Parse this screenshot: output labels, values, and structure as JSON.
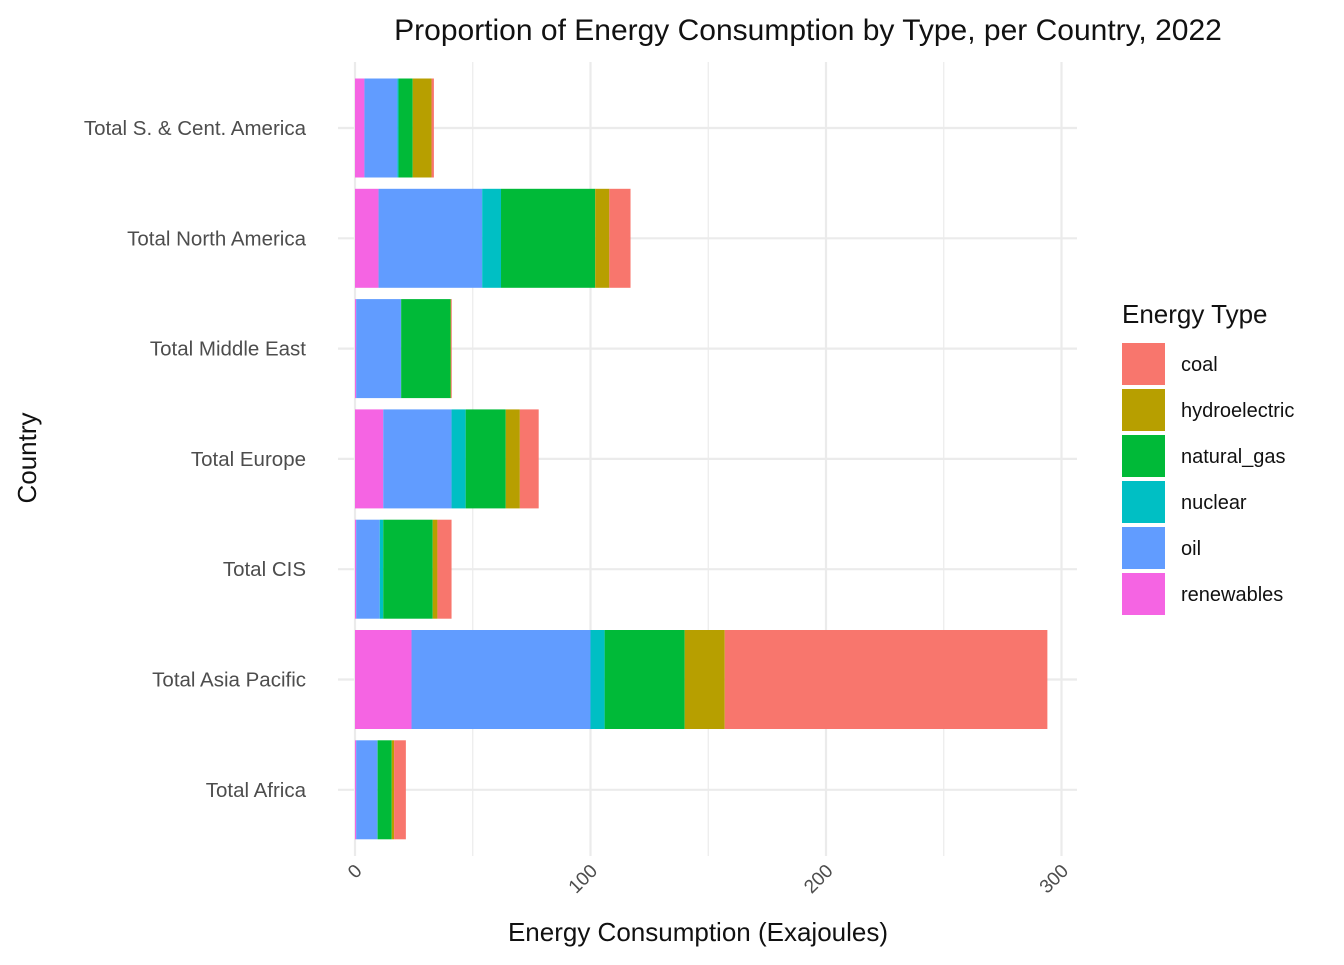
{
  "chart_data": {
    "type": "bar",
    "orientation": "horizontal",
    "stacked": true,
    "title": "Proportion of Energy Consumption by Type, per Country, 2022",
    "xlabel": "Energy Consumption (Exajoules)",
    "ylabel": "Country",
    "xlim": [
      0,
      300
    ],
    "x_ticks": [
      0,
      100,
      200,
      300
    ],
    "grid": true,
    "legend": {
      "title": "Energy Type",
      "position": "right"
    },
    "categories": [
      "Total S. & Cent. America",
      "Total North America",
      "Total Middle East",
      "Total Europe",
      "Total CIS",
      "Total Asia Pacific",
      "Total Africa"
    ],
    "stack_order": [
      "renewables",
      "oil",
      "nuclear",
      "natural_gas",
      "hydroelectric",
      "coal"
    ],
    "series": [
      {
        "name": "coal",
        "color": "#F8766D",
        "values": [
          1,
          9,
          0.3,
          8,
          6,
          137,
          5
        ]
      },
      {
        "name": "hydroelectric",
        "color": "#B79F00",
        "values": [
          8,
          6,
          0.2,
          6,
          2,
          17,
          1
        ]
      },
      {
        "name": "natural_gas",
        "color": "#00BA38",
        "values": [
          6,
          40,
          21,
          17,
          21,
          34,
          6
        ]
      },
      {
        "name": "nuclear",
        "color": "#00BFC4",
        "values": [
          0.5,
          8,
          0.1,
          6,
          1.5,
          6,
          0.1
        ]
      },
      {
        "name": "oil",
        "color": "#619CFF",
        "values": [
          14,
          44,
          19,
          29,
          10,
          76,
          9
        ]
      },
      {
        "name": "renewables",
        "color": "#F564E3",
        "values": [
          4,
          10,
          0.5,
          12,
          0.5,
          24,
          0.5
        ]
      }
    ]
  }
}
